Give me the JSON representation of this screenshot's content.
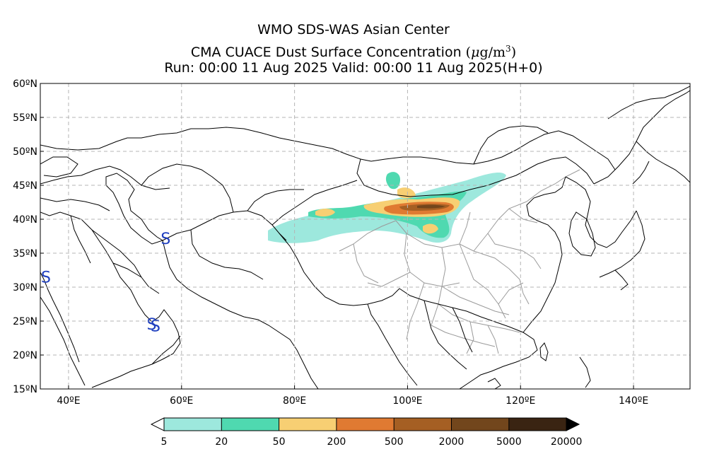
{
  "header": {
    "line1": "WMO SDS-WAS Asian Center",
    "line2_main": "CMA CUACE Dust Surface Concentration",
    "line2_unit_prefix": "(",
    "line2_unit_mu": "μ",
    "line2_unit_g": "g/m",
    "line2_unit_exp": "3",
    "line2_unit_suffix": ")",
    "line3": "Run: 00:00 11 Aug 2025    Valid: 00:00 11 Aug 2025(H+0)"
  },
  "map": {
    "lon_range": [
      35,
      150
    ],
    "lat_range": [
      15,
      60
    ],
    "lat_ticks": [
      "15ºN",
      "20ºN",
      "25ºN",
      "30ºN",
      "35ºN",
      "40ºN",
      "45ºN",
      "50ºN",
      "55ºN",
      "60ºN"
    ],
    "lat_values": [
      15,
      20,
      25,
      30,
      35,
      40,
      45,
      50,
      55,
      60
    ],
    "lon_ticks": [
      "40ºE",
      "60ºE",
      "80ºE",
      "100ºE",
      "120ºE",
      "140ºE"
    ],
    "lon_values": [
      40,
      60,
      80,
      100,
      120,
      140
    ],
    "grid": true,
    "station_marker": "S",
    "station_color": "#1f3fbf",
    "stations": [
      {
        "label": "S",
        "lon": 57.2,
        "lat": 37.2
      },
      {
        "label": "S",
        "lon": 36.0,
        "lat": 31.5
      },
      {
        "label": "S",
        "lon": 54.7,
        "lat": 24.6
      },
      {
        "label": "S",
        "lon": 55.4,
        "lat": 24.3
      }
    ]
  },
  "legend": {
    "labels": [
      "5",
      "20",
      "50",
      "200",
      "500",
      "2000",
      "5000",
      "20000"
    ],
    "colors": [
      "#9de8dd",
      "#4fd9b0",
      "#f7cf73",
      "#e07a32",
      "#a55f23",
      "#72461c",
      "#3a2412"
    ],
    "below_min_color": "#ffffff",
    "above_max_color": "#000000"
  }
}
